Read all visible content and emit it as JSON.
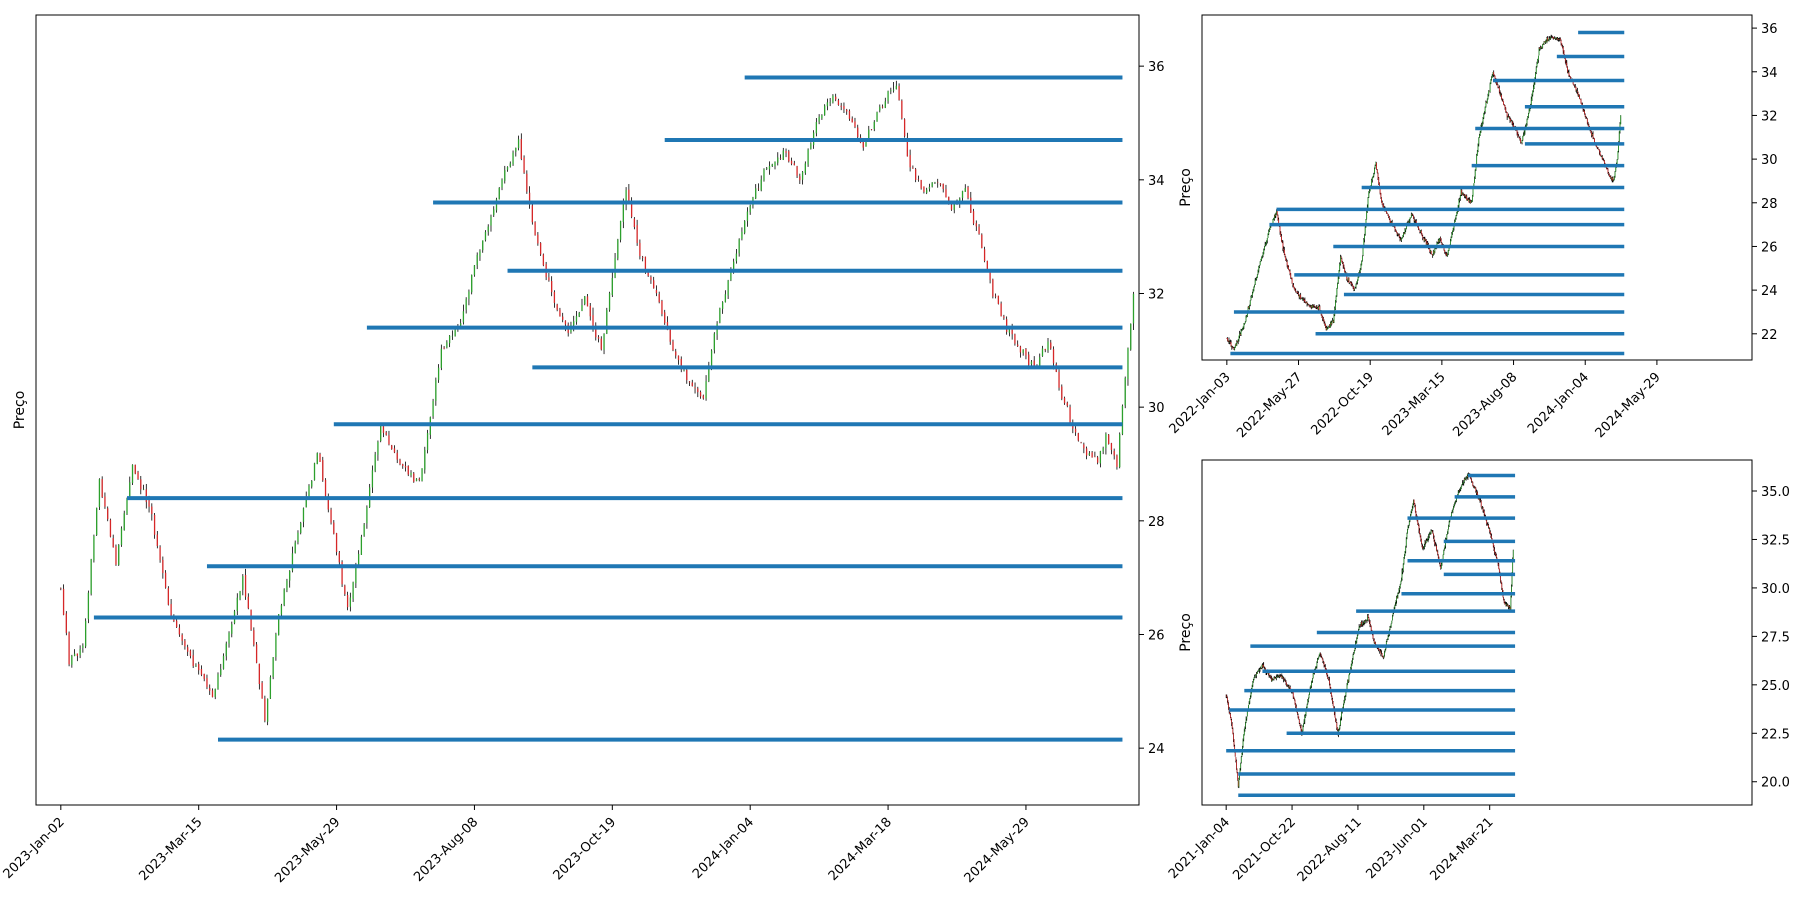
{
  "colors": {
    "level_line": "#1f77b4",
    "wick": "#000000",
    "up_body": "#2ca02c",
    "down_body": "#d62728",
    "axis": "#000000"
  },
  "chart_data": [
    {
      "type": "candlestick",
      "panel": "main",
      "ylabel": "Preço",
      "xlabel": "",
      "x_ticks": [
        "2023-Jan-02",
        "2023-Mar-15",
        "2023-May-29",
        "2023-Aug-08",
        "2023-Oct-19",
        "2024-Jan-04",
        "2024-Mar-18",
        "2024-May-29"
      ],
      "x_range_bars": [
        -9,
        391
      ],
      "y_ticks": [
        24,
        26,
        28,
        30,
        32,
        34,
        36
      ],
      "ylim": [
        23.0,
        36.9
      ],
      "y_axis_side": "right",
      "grid": false,
      "price_path": [
        [
          0,
          26.8
        ],
        [
          3,
          25.5
        ],
        [
          8,
          25.8
        ],
        [
          14,
          28.7
        ],
        [
          20,
          27.3
        ],
        [
          26,
          29.0
        ],
        [
          33,
          28.1
        ],
        [
          40,
          26.3
        ],
        [
          48,
          25.5
        ],
        [
          55,
          24.9
        ],
        [
          60,
          25.8
        ],
        [
          66,
          27.0
        ],
        [
          72,
          25.2
        ],
        [
          74,
          24.5
        ],
        [
          79,
          26.4
        ],
        [
          86,
          27.8
        ],
        [
          93,
          29.2
        ],
        [
          98,
          28.0
        ],
        [
          104,
          26.4
        ],
        [
          110,
          28.0
        ],
        [
          116,
          29.7
        ],
        [
          123,
          29.0
        ],
        [
          130,
          28.7
        ],
        [
          138,
          31.0
        ],
        [
          145,
          31.5
        ],
        [
          150,
          32.5
        ],
        [
          155,
          33.2
        ],
        [
          160,
          34.0
        ],
        [
          166,
          34.7
        ],
        [
          172,
          33.0
        ],
        [
          178,
          32.0
        ],
        [
          184,
          31.3
        ],
        [
          190,
          31.9
        ],
        [
          196,
          31.0
        ],
        [
          200,
          32.3
        ],
        [
          205,
          33.8
        ],
        [
          210,
          32.7
        ],
        [
          216,
          32.0
        ],
        [
          222,
          31.0
        ],
        [
          228,
          30.4
        ],
        [
          233,
          30.2
        ],
        [
          238,
          31.5
        ],
        [
          243,
          32.4
        ],
        [
          248,
          33.3
        ],
        [
          255,
          34.2
        ],
        [
          262,
          34.5
        ],
        [
          268,
          34.0
        ],
        [
          274,
          35.0
        ],
        [
          280,
          35.5
        ],
        [
          286,
          35.1
        ],
        [
          291,
          34.6
        ],
        [
          297,
          35.3
        ],
        [
          303,
          35.7
        ],
        [
          308,
          34.2
        ],
        [
          313,
          33.8
        ],
        [
          318,
          34.0
        ],
        [
          323,
          33.5
        ],
        [
          328,
          33.8
        ],
        [
          333,
          33.0
        ],
        [
          338,
          32.0
        ],
        [
          343,
          31.4
        ],
        [
          348,
          31.0
        ],
        [
          353,
          30.7
        ],
        [
          358,
          31.2
        ],
        [
          363,
          30.2
        ],
        [
          368,
          29.5
        ],
        [
          372,
          29.2
        ],
        [
          376,
          29.0
        ],
        [
          379,
          29.5
        ],
        [
          383,
          29.0
        ],
        [
          386,
          30.5
        ],
        [
          389,
          32.0
        ]
      ],
      "levels": [
        {
          "price": 35.8,
          "start": 248
        },
        {
          "price": 34.7,
          "start": 219
        },
        {
          "price": 33.6,
          "start": 135
        },
        {
          "price": 32.4,
          "start": 162
        },
        {
          "price": 31.4,
          "start": 111
        },
        {
          "price": 30.7,
          "start": 171
        },
        {
          "price": 29.7,
          "start": 99
        },
        {
          "price": 28.4,
          "start": 24
        },
        {
          "price": 27.2,
          "start": 53
        },
        {
          "price": 26.3,
          "start": 12
        },
        {
          "price": 24.15,
          "start": 57
        }
      ],
      "levels_end": 385
    },
    {
      "type": "candlestick",
      "panel": "top-right",
      "ylabel": "Preço",
      "xlabel": "",
      "x_ticks": [
        "2022-Jan-03",
        "2022-May-27",
        "2022-Oct-19",
        "2023-Mar-15",
        "2023-Aug-08",
        "2024-Jan-04",
        "2024-May-29"
      ],
      "x_range_bars": [
        -35,
        740
      ],
      "y_ticks": [
        22,
        24,
        26,
        28,
        30,
        32,
        34,
        36
      ],
      "ylim": [
        20.8,
        36.6
      ],
      "y_axis_side": "right",
      "grid": false,
      "price_path": [
        [
          0,
          21.8
        ],
        [
          10,
          21.3
        ],
        [
          25,
          22.5
        ],
        [
          45,
          25.0
        ],
        [
          60,
          26.8
        ],
        [
          70,
          27.6
        ],
        [
          80,
          25.8
        ],
        [
          95,
          24.0
        ],
        [
          115,
          23.3
        ],
        [
          130,
          23.2
        ],
        [
          140,
          22.2
        ],
        [
          150,
          22.6
        ],
        [
          160,
          25.5
        ],
        [
          170,
          24.5
        ],
        [
          180,
          24.0
        ],
        [
          190,
          25.3
        ],
        [
          200,
          28.5
        ],
        [
          210,
          29.8
        ],
        [
          218,
          28.0
        ],
        [
          230,
          27.2
        ],
        [
          245,
          26.3
        ],
        [
          260,
          27.5
        ],
        [
          275,
          26.5
        ],
        [
          290,
          25.6
        ],
        [
          300,
          26.4
        ],
        [
          310,
          25.5
        ],
        [
          320,
          27.0
        ],
        [
          330,
          28.5
        ],
        [
          345,
          28.0
        ],
        [
          355,
          31.0
        ],
        [
          365,
          32.5
        ],
        [
          375,
          34.0
        ],
        [
          385,
          33.0
        ],
        [
          395,
          32.0
        ],
        [
          405,
          31.5
        ],
        [
          415,
          30.7
        ],
        [
          428,
          32.5
        ],
        [
          440,
          35.0
        ],
        [
          455,
          35.6
        ],
        [
          470,
          35.5
        ],
        [
          480,
          34.0
        ],
        [
          495,
          33.0
        ],
        [
          510,
          31.5
        ],
        [
          520,
          30.6
        ],
        [
          530,
          30.0
        ],
        [
          540,
          29.2
        ],
        [
          545,
          29.0
        ],
        [
          550,
          30.0
        ],
        [
          555,
          32.0
        ]
      ],
      "levels": [
        {
          "price": 35.8,
          "start": 495
        },
        {
          "price": 34.7,
          "start": 465
        },
        {
          "price": 33.6,
          "start": 375
        },
        {
          "price": 32.4,
          "start": 420
        },
        {
          "price": 31.4,
          "start": 350
        },
        {
          "price": 30.7,
          "start": 420
        },
        {
          "price": 29.7,
          "start": 345
        },
        {
          "price": 28.7,
          "start": 190
        },
        {
          "price": 27.7,
          "start": 70
        },
        {
          "price": 27.0,
          "start": 60
        },
        {
          "price": 26.0,
          "start": 150
        },
        {
          "price": 24.7,
          "start": 95
        },
        {
          "price": 23.8,
          "start": 165
        },
        {
          "price": 23.0,
          "start": 10
        },
        {
          "price": 22.0,
          "start": 125
        },
        {
          "price": 21.1,
          "start": 5
        }
      ],
      "levels_end": 560
    },
    {
      "type": "candlestick",
      "panel": "bottom-right",
      "ylabel": "Preço",
      "xlabel": "",
      "x_ticks": [
        "2021-Jan-04",
        "2021-Oct-22",
        "2022-Aug-11",
        "2023-Jun-01",
        "2024-Mar-21"
      ],
      "x_range_bars": [
        -40,
        870
      ],
      "y_ticks": [
        20.0,
        22.5,
        25.0,
        27.5,
        30.0,
        32.5,
        35.0
      ],
      "ylim": [
        18.8,
        36.6
      ],
      "y_axis_side": "right",
      "grid": false,
      "price_path": [
        [
          0,
          24.5
        ],
        [
          10,
          22.8
        ],
        [
          20,
          19.8
        ],
        [
          30,
          22.7
        ],
        [
          45,
          25.3
        ],
        [
          60,
          26.0
        ],
        [
          75,
          25.3
        ],
        [
          90,
          25.5
        ],
        [
          110,
          24.6
        ],
        [
          125,
          22.5
        ],
        [
          140,
          25.0
        ],
        [
          155,
          26.7
        ],
        [
          170,
          25.2
        ],
        [
          185,
          22.5
        ],
        [
          200,
          25.0
        ],
        [
          220,
          28.0
        ],
        [
          235,
          28.5
        ],
        [
          245,
          27.2
        ],
        [
          260,
          26.4
        ],
        [
          275,
          28.5
        ],
        [
          290,
          30.5
        ],
        [
          300,
          33.0
        ],
        [
          310,
          34.5
        ],
        [
          325,
          32.0
        ],
        [
          340,
          33.0
        ],
        [
          355,
          31.0
        ],
        [
          370,
          33.6
        ],
        [
          385,
          35.0
        ],
        [
          400,
          35.9
        ],
        [
          420,
          34.5
        ],
        [
          435,
          33.0
        ],
        [
          450,
          31.2
        ],
        [
          460,
          29.2
        ],
        [
          470,
          29.0
        ],
        [
          475,
          32.0
        ]
      ],
      "levels": [
        {
          "price": 35.8,
          "start": 400
        },
        {
          "price": 34.7,
          "start": 378
        },
        {
          "price": 33.6,
          "start": 300
        },
        {
          "price": 32.4,
          "start": 360
        },
        {
          "price": 31.4,
          "start": 300
        },
        {
          "price": 30.7,
          "start": 360
        },
        {
          "price": 29.7,
          "start": 290
        },
        {
          "price": 28.8,
          "start": 215
        },
        {
          "price": 27.7,
          "start": 150
        },
        {
          "price": 27.0,
          "start": 40
        },
        {
          "price": 25.7,
          "start": 60
        },
        {
          "price": 24.7,
          "start": 30
        },
        {
          "price": 23.7,
          "start": 5
        },
        {
          "price": 22.5,
          "start": 100
        },
        {
          "price": 21.6,
          "start": 0
        },
        {
          "price": 20.4,
          "start": 20
        },
        {
          "price": 19.3,
          "start": 20
        }
      ],
      "levels_end": 478
    }
  ]
}
